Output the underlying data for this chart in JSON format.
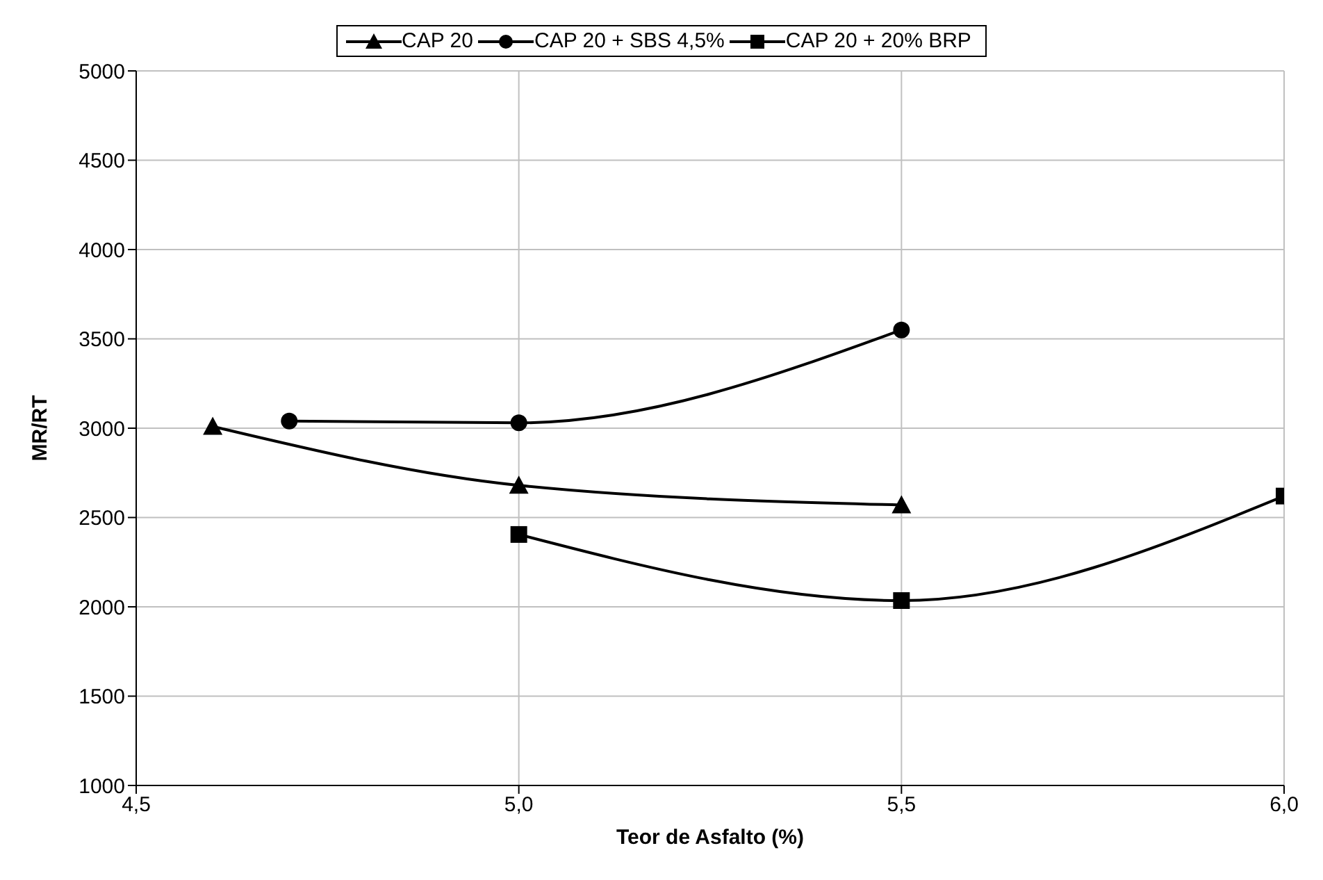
{
  "chart_data": {
    "type": "line",
    "xlabel": "Teor de Asfalto (%)",
    "ylabel": "MR/RT",
    "xlim": [
      4.5,
      6.0
    ],
    "xticks": [
      {
        "value": 4.5,
        "label": "4,5"
      },
      {
        "value": 5.0,
        "label": "5,0"
      },
      {
        "value": 5.5,
        "label": "5,5"
      },
      {
        "value": 6.0,
        "label": "6,0"
      }
    ],
    "ylim": [
      1000,
      5000
    ],
    "yticks": [
      1000,
      1500,
      2000,
      2500,
      3000,
      3500,
      4000,
      4500,
      5000
    ],
    "grid": true,
    "legend": "top",
    "series": [
      {
        "name": "CAP 20",
        "color": "#000000",
        "marker": "triangle",
        "x": [
          4.6,
          5.0,
          5.5
        ],
        "values": [
          3010,
          2680,
          2570
        ]
      },
      {
        "name": "CAP 20 + SBS 4,5%",
        "color": "#000000",
        "marker": "circle",
        "x": [
          4.7,
          5.0,
          5.5
        ],
        "values": [
          3040,
          3030,
          3550
        ]
      },
      {
        "name": "CAP 20 + 20% BRP",
        "color": "#000000",
        "marker": "square",
        "x": [
          5.0,
          5.5,
          6.0
        ],
        "values": [
          2405,
          2035,
          2620
        ]
      }
    ]
  }
}
